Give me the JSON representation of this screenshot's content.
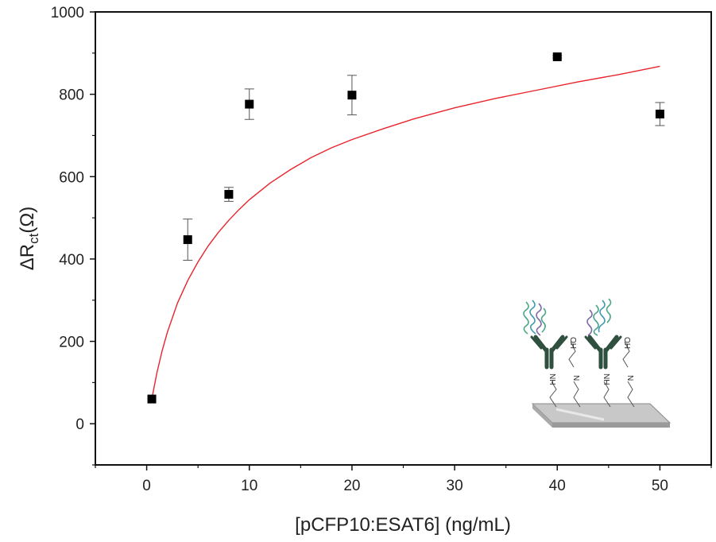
{
  "chart_data": {
    "type": "scatter",
    "xlabel": "[pCFP10:ESAT6] (ng/mL)",
    "ylabel": {
      "prefix": "ΔR",
      "subscript": "ct",
      "suffix": "(Ω)"
    },
    "xlim": [
      -5,
      55
    ],
    "ylim": [
      -100,
      1000
    ],
    "x_ticks": [
      0,
      10,
      20,
      30,
      40,
      50
    ],
    "y_ticks": [
      0,
      200,
      400,
      600,
      800,
      1000
    ],
    "grid": false,
    "series": [
      {
        "marker": "square",
        "color": "#000000",
        "points": [
          {
            "x": 0.5,
            "y": 60,
            "err": 0
          },
          {
            "x": 4,
            "y": 447,
            "err": 50
          },
          {
            "x": 8,
            "y": 557,
            "err": 17
          },
          {
            "x": 10,
            "y": 776,
            "err": 37
          },
          {
            "x": 20,
            "y": 798,
            "err": 48
          },
          {
            "x": 40,
            "y": 891,
            "err": 3
          },
          {
            "x": 50,
            "y": 752,
            "err": 28
          }
        ]
      }
    ],
    "fit": {
      "type": "line",
      "color": "#e8242c",
      "x": [
        0.5,
        1,
        1.5,
        2,
        3,
        4,
        5,
        6,
        7,
        8,
        9,
        10,
        12,
        14,
        16,
        18,
        20,
        23,
        26,
        30,
        34,
        38,
        42,
        46,
        50
      ],
      "y": [
        60,
        124,
        177,
        221,
        293,
        348,
        393,
        432,
        465,
        494,
        520,
        544,
        584,
        617,
        646,
        670,
        690,
        716,
        740,
        767,
        790,
        810,
        830,
        848,
        868
      ]
    },
    "inset": {
      "type": "schematic",
      "labels": [
        "NH",
        "N",
        "OH",
        "NH",
        "N",
        "OH"
      ]
    }
  }
}
